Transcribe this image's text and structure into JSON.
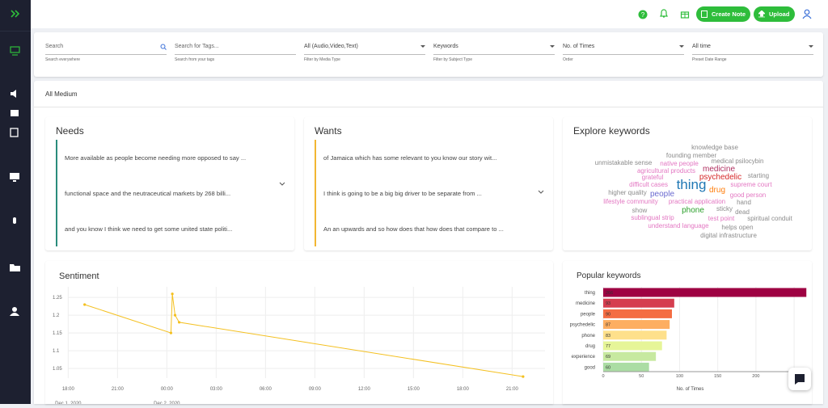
{
  "topbar": {
    "create_note": "Create Note",
    "upload": "Upload"
  },
  "filters": [
    {
      "value": "Search",
      "hint": "Search everywhere"
    },
    {
      "value": "Search for Tags...",
      "hint": "Search from your tags"
    },
    {
      "value": "All (Audio,Video,Text)",
      "hint": "Filter by Media Type"
    },
    {
      "value": "Keywords",
      "hint": "Filter by Subject Type"
    },
    {
      "value": "No. of Times",
      "hint": "Order"
    },
    {
      "value": "All time",
      "hint": "Preset Date Range"
    }
  ],
  "section_title": "All Medium",
  "needs": {
    "title": "Needs",
    "items": [
      "More available as people become needing more opposed to say ...",
      "functional space and the neutraceutical markets by 268 billi...",
      "and you know I think we need to get some united state politi..."
    ]
  },
  "wants": {
    "title": "Wants",
    "items": [
      "of Jamaica which has some relevant to you know our story wit...",
      "I think is going to be a big big driver to be separate from ...",
      "An an upwards and so how does that how does that compare to ..."
    ]
  },
  "explore_keywords": {
    "title": "Explore keywords",
    "words": [
      {
        "text": "knowledge base",
        "color": "#8c8c8c"
      },
      {
        "text": "founding member",
        "color": "#8c8c8c"
      },
      {
        "text": "unmistakable sense",
        "color": "#8c8c8c"
      },
      {
        "text": "native people",
        "color": "#e377c2"
      },
      {
        "text": "medical psilocybin",
        "color": "#8c8c8c"
      },
      {
        "text": "agricultural products",
        "color": "#e377c2"
      },
      {
        "text": "medicine",
        "color": "#b03060"
      },
      {
        "text": "grateful",
        "color": "#e377c2"
      },
      {
        "text": "psychedelic",
        "color": "#d62728"
      },
      {
        "text": "starting",
        "color": "#8c8c8c"
      },
      {
        "text": "difficult cases",
        "color": "#e377c2"
      },
      {
        "text": "thing",
        "color": "#1f77b4"
      },
      {
        "text": "drug",
        "color": "#ff7f0e"
      },
      {
        "text": "supreme court",
        "color": "#e377c2"
      },
      {
        "text": "higher quality",
        "color": "#8c8c8c"
      },
      {
        "text": "people",
        "color": "#6a6ad0"
      },
      {
        "text": "good person",
        "color": "#e377c2"
      },
      {
        "text": "lifestyle community",
        "color": "#e377c2"
      },
      {
        "text": "practical application",
        "color": "#e377c2"
      },
      {
        "text": "hand",
        "color": "#8c8c8c"
      },
      {
        "text": "show",
        "color": "#8c8c8c"
      },
      {
        "text": "phone",
        "color": "#2ca02c"
      },
      {
        "text": "sticky",
        "color": "#8c8c8c"
      },
      {
        "text": "dead",
        "color": "#8c8c8c"
      },
      {
        "text": "sublingual strip",
        "color": "#e377c2"
      },
      {
        "text": "test point",
        "color": "#e377c2"
      },
      {
        "text": "spiritual conduit",
        "color": "#8c8c8c"
      },
      {
        "text": "understand language",
        "color": "#e377c2"
      },
      {
        "text": "helps open",
        "color": "#8c8c8c"
      },
      {
        "text": "digital infrastructure",
        "color": "#8c8c8c"
      }
    ]
  },
  "chart_data": [
    {
      "type": "line",
      "title": "Sentiment",
      "x": [
        "2020-12-01T19:00",
        "2020-12-02T00:15",
        "2020-12-02T00:20",
        "2020-12-02T00:30",
        "2020-12-02T00:45",
        "2020-12-02T21:40"
      ],
      "values": [
        1.23,
        1.15,
        1.26,
        1.2,
        1.18,
        1.027
      ],
      "color": "#f4c020",
      "xlim": [
        "2020-12-01T17:00",
        "2020-12-02T23:00"
      ],
      "xticks": [
        {
          "value": "2020-12-01T18:00",
          "label": "18:00"
        },
        {
          "value": "2020-12-01T21:00",
          "label": "21:00"
        },
        {
          "value": "2020-12-02T00:00",
          "label": "00:00"
        },
        {
          "value": "2020-12-02T03:00",
          "label": "03:00"
        },
        {
          "value": "2020-12-02T06:00",
          "label": "06:00"
        },
        {
          "value": "2020-12-02T09:00",
          "label": "09:00"
        },
        {
          "value": "2020-12-02T12:00",
          "label": "12:00"
        },
        {
          "value": "2020-12-02T15:00",
          "label": "15:00"
        },
        {
          "value": "2020-12-02T18:00",
          "label": "18:00"
        },
        {
          "value": "2020-12-02T21:00",
          "label": "21:00"
        }
      ],
      "x_date_labels": [
        {
          "value": "2020-12-01T18:00",
          "label": "Dec 1, 2020"
        },
        {
          "value": "2020-12-02T00:00",
          "label": "Dec 2, 2020"
        }
      ],
      "ylim": [
        1.0,
        1.28
      ],
      "yticks": [
        1.05,
        1.1,
        1.15,
        1.2,
        1.25
      ],
      "grid": true
    },
    {
      "type": "bar",
      "orientation": "horizontal",
      "title": "Popular keywords",
      "categories": [
        "thing",
        "medicine",
        "people",
        "psychedelic",
        "phone",
        "drug",
        "experience",
        "good"
      ],
      "values": [
        266,
        93,
        90,
        87,
        83,
        77,
        69,
        60
      ],
      "colors": [
        "#9e0142",
        "#d53e4f",
        "#f46d43",
        "#fdae61",
        "#fee08b",
        "#e6f598",
        "#c7e9a0",
        "#abdda4"
      ],
      "xlabel": "No. of Times",
      "xlim": [
        0,
        270
      ],
      "xticks": [
        0,
        50,
        100,
        150,
        200,
        250
      ],
      "grid": true
    }
  ]
}
